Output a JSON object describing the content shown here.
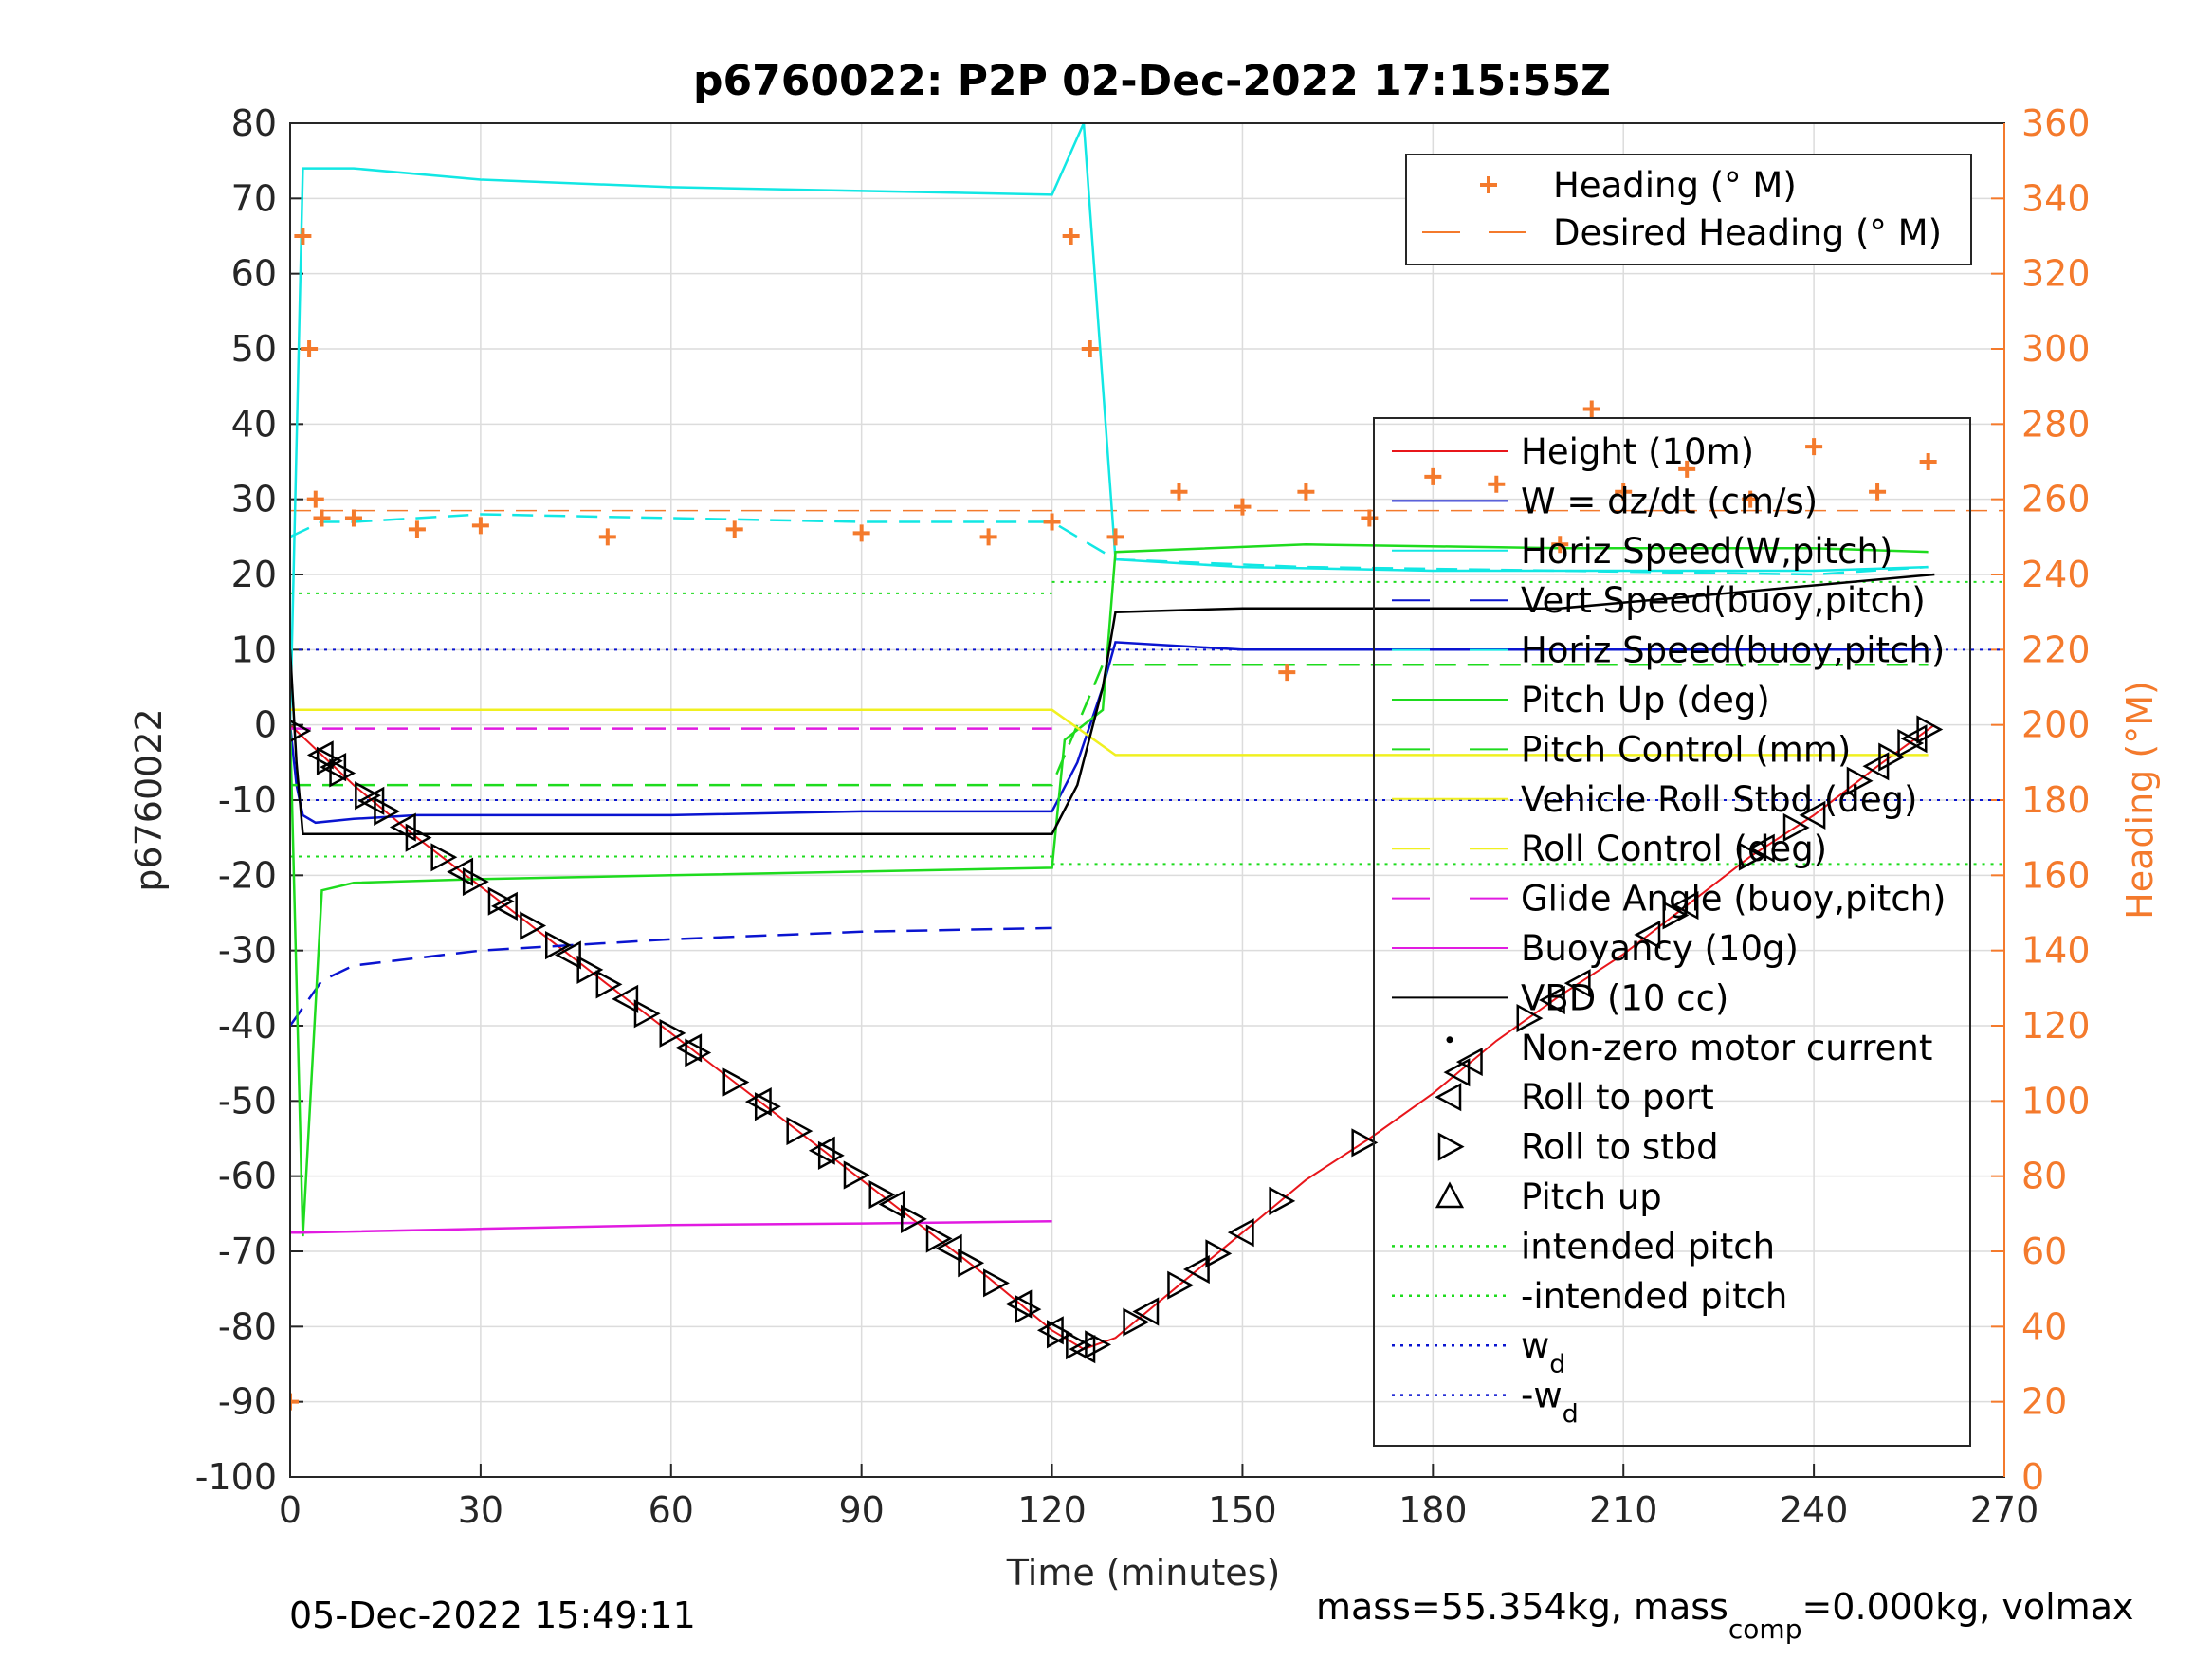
{
  "page": {
    "footer_left": "05-Dec-2022 15:49:11",
    "footer_right_main": "mass=55.354kg, mass",
    "footer_right_sub": "comp",
    "footer_right_rest": "=0.000kg, volmax"
  },
  "chart_data": {
    "type": "line",
    "title": "p6760022: P2P 02-Dec-2022 17:15:55Z",
    "xlabel": "Time (minutes)",
    "ylabel_left": "p6760022",
    "ylabel_right": "Heading (°M)",
    "xlim": [
      0,
      270
    ],
    "ylim_left": [
      -100,
      80
    ],
    "ylim_right": [
      0,
      360
    ],
    "x_ticks": [
      "0",
      "30",
      "60",
      "90",
      "120",
      "150",
      "180",
      "210",
      "240",
      "270"
    ],
    "y_left_ticks": [
      "80",
      "70",
      "60",
      "50",
      "40",
      "30",
      "20",
      "10",
      "0",
      "-10",
      "-20",
      "-30",
      "-40",
      "-50",
      "-60",
      "-70",
      "-80",
      "-90",
      "-100"
    ],
    "y_right_ticks": [
      "360",
      "340",
      "320",
      "300",
      "280",
      "260",
      "240",
      "220",
      "200",
      "180",
      "160",
      "140",
      "120",
      "100",
      "80",
      "60",
      "40",
      "20",
      "0"
    ],
    "grid": true,
    "heading_color": "#F47A2C",
    "legend_top": {
      "placement": "top-right",
      "entries": [
        {
          "label": "Heading (° M)",
          "style": "plus",
          "color": "#F47A2C"
        },
        {
          "label": "Desired Heading (° M)",
          "style": "dash",
          "color": "#F47A2C"
        }
      ]
    },
    "legend_main": {
      "placement": "right",
      "entries": [
        {
          "label": "Height (10m)",
          "style": "solid",
          "color": "#E8161B"
        },
        {
          "label": "W = dz/dt (cm/s)",
          "style": "solid",
          "color": "#0A14D0"
        },
        {
          "label": "Horiz Speed(W,pitch)",
          "style": "solid",
          "color": "#12E7E4"
        },
        {
          "label": "Vert Speed(buoy,pitch)",
          "style": "dash",
          "color": "#0A14D0"
        },
        {
          "label": "Horiz Speed(buoy,pitch)",
          "style": "dash",
          "color": "#12E7E4"
        },
        {
          "label": "Pitch Up (deg)",
          "style": "solid",
          "color": "#1EDB1E"
        },
        {
          "label": "Pitch Control (mm)",
          "style": "dash",
          "color": "#1EDB1E"
        },
        {
          "label": "Vehicle Roll Stbd (deg)",
          "style": "solid",
          "color": "#F0F020"
        },
        {
          "label": "Roll Control (deg)",
          "style": "dash",
          "color": "#F0F020"
        },
        {
          "label": "Glide Angle (buoy,pitch)",
          "style": "dash",
          "color": "#E11BE1"
        },
        {
          "label": "Buoyancy (10g)",
          "style": "solid",
          "color": "#E11BE1"
        },
        {
          "label": "VBD (10 cc)",
          "style": "solid",
          "color": "#000000"
        },
        {
          "label": "Non-zero motor current",
          "style": "dot",
          "color": "#000000"
        },
        {
          "label": "Roll to port",
          "style": "tri-left",
          "color": "#000000"
        },
        {
          "label": "Roll to stbd",
          "style": "tri-right",
          "color": "#000000"
        },
        {
          "label": "Pitch up",
          "style": "tri-up",
          "color": "#000000"
        },
        {
          "label": "intended pitch",
          "style": "dotted",
          "color": "#1EDB1E"
        },
        {
          "label": "-intended pitch",
          "style": "dotted",
          "color": "#1EDB1E"
        },
        {
          "label": "w",
          "sub": "d",
          "style": "dotted",
          "color": "#0A14D0"
        },
        {
          "label": "-w",
          "sub": "d",
          "style": "dotted",
          "color": "#0A14D0"
        }
      ]
    },
    "reference_lines": [
      {
        "name": "intended pitch",
        "y_before_120": 17.5,
        "y_after_120": 19
      },
      {
        "name": "-intended pitch",
        "y_before_120": -17.5,
        "y_after_120": -18.5
      },
      {
        "name": "w_d",
        "y": 10
      },
      {
        "name": "-w_d",
        "y": -10
      },
      {
        "name": "Desired Heading",
        "heading": 257
      }
    ],
    "series": [
      {
        "name": "Height (10m)",
        "x": [
          0,
          5,
          10,
          20,
          30,
          40,
          50,
          60,
          70,
          80,
          90,
          100,
          110,
          120,
          125,
          130,
          140,
          150,
          160,
          170,
          180,
          190,
          200,
          210,
          220,
          230,
          240,
          250,
          259
        ],
        "y": [
          0,
          -4,
          -8,
          -15,
          -21.5,
          -28,
          -34.5,
          -41,
          -47.5,
          -54,
          -60.5,
          -67,
          -73.5,
          -80.5,
          -83,
          -81.5,
          -74.5,
          -67.5,
          -60.5,
          -55,
          -49,
          -42,
          -36,
          -30.5,
          -24,
          -17.5,
          -12,
          -5.5,
          0
        ]
      },
      {
        "name": "W = dz/dt (cm/s)",
        "x": [
          0,
          1,
          2,
          4,
          10,
          20,
          30,
          60,
          90,
          120,
          124,
          128,
          130,
          150,
          180,
          210,
          240,
          258
        ],
        "y": [
          0,
          -8,
          -12,
          -13,
          -12.5,
          -12,
          -12,
          -12,
          -11.5,
          -11.5,
          -5,
          5,
          11,
          10,
          10,
          10,
          10,
          10
        ]
      },
      {
        "name": "Horiz Speed(W,pitch)",
        "x": [
          0,
          2,
          10,
          30,
          60,
          90,
          120,
          125,
          130,
          150,
          180,
          210,
          240,
          258
        ],
        "y": [
          0,
          74,
          74,
          72.5,
          71.5,
          71,
          70.5,
          80,
          22,
          21,
          20.5,
          20.5,
          20.5,
          21
        ]
      },
      {
        "name": "Vert Speed(buoy,pitch)",
        "x": [
          0,
          5,
          10,
          30,
          60,
          90,
          120
        ],
        "y": [
          -40,
          -34,
          -32,
          -30,
          -28.5,
          -27.5,
          -27
        ]
      },
      {
        "name": "Horiz Speed(buoy,pitch)",
        "x": [
          0,
          5,
          10,
          30,
          60,
          90,
          120,
          130,
          160,
          200,
          240,
          258
        ],
        "y": [
          25,
          27,
          27,
          28,
          27.5,
          27,
          27,
          22,
          21,
          20.5,
          20,
          21
        ]
      },
      {
        "name": "Pitch Up (deg)",
        "x": [
          0,
          2,
          5,
          10,
          30,
          60,
          90,
          120,
          122,
          128,
          130,
          160,
          200,
          240,
          258
        ],
        "y": [
          0,
          -68,
          -22,
          -21,
          -20.5,
          -20,
          -19.5,
          -19,
          -2,
          2,
          23,
          24,
          23.5,
          23.5,
          23
        ]
      },
      {
        "name": "Pitch Control (mm)",
        "x": [
          0,
          5,
          120,
          128,
          258
        ],
        "y": [
          -8,
          -8,
          -8,
          8,
          8
        ]
      },
      {
        "name": "Vehicle Roll Stbd (deg)",
        "x": [
          0,
          5,
          30,
          60,
          90,
          120,
          130,
          160,
          200,
          240,
          258
        ],
        "y": [
          2,
          2,
          2,
          2,
          2,
          2,
          -4,
          -4,
          -4,
          -4,
          -4
        ]
      },
      {
        "name": "Glide Angle (buoy,pitch)",
        "x": [
          0,
          120
        ],
        "y": [
          -0.5,
          -0.5
        ]
      },
      {
        "name": "Buoyancy (10g)",
        "x": [
          0,
          2,
          30,
          60,
          90,
          120
        ],
        "y": [
          -67.5,
          -67.5,
          -67,
          -66.5,
          -66.3,
          -66
        ]
      },
      {
        "name": "VBD (10 cc)",
        "x": [
          0,
          1,
          2,
          120,
          124,
          128,
          130,
          150,
          200,
          259
        ],
        "y": [
          10,
          -5,
          -14.5,
          -14.5,
          -8,
          5,
          15,
          15.5,
          15.5,
          20
        ]
      },
      {
        "name": "Heading (° M)",
        "x": [
          0,
          2,
          3,
          4,
          5,
          10,
          20,
          30,
          50,
          70,
          90,
          110,
          120,
          123,
          126,
          130,
          140,
          150,
          157,
          160,
          170,
          180,
          190,
          200,
          205,
          210,
          220,
          230,
          240,
          250,
          258
        ],
        "heading": [
          20,
          330,
          300,
          260,
          255,
          255,
          252,
          253,
          250,
          252,
          251,
          250,
          254,
          330,
          300,
          250,
          262,
          258,
          214,
          262,
          255,
          266,
          264,
          248,
          284,
          262,
          268,
          260,
          274,
          262,
          270
        ]
      }
    ],
    "markers": {
      "roll_to_stbd_x": [
        1,
        6,
        8,
        12,
        15,
        20,
        24,
        29,
        33,
        38,
        42,
        47,
        50,
        56,
        60,
        64,
        70,
        75,
        80,
        85,
        89,
        93,
        98,
        102,
        107,
        111,
        116,
        121,
        124,
        127,
        133,
        140,
        146,
        156,
        169,
        195,
        218,
        230,
        237,
        247,
        252,
        255,
        258
      ],
      "roll_to_port_x": [
        5,
        7,
        13,
        18,
        27,
        34,
        44,
        53,
        63,
        74,
        84,
        95,
        104,
        115,
        120,
        125,
        135,
        143,
        150,
        184,
        186,
        199,
        203,
        214,
        220,
        232,
        240,
        250,
        256
      ]
    }
  }
}
